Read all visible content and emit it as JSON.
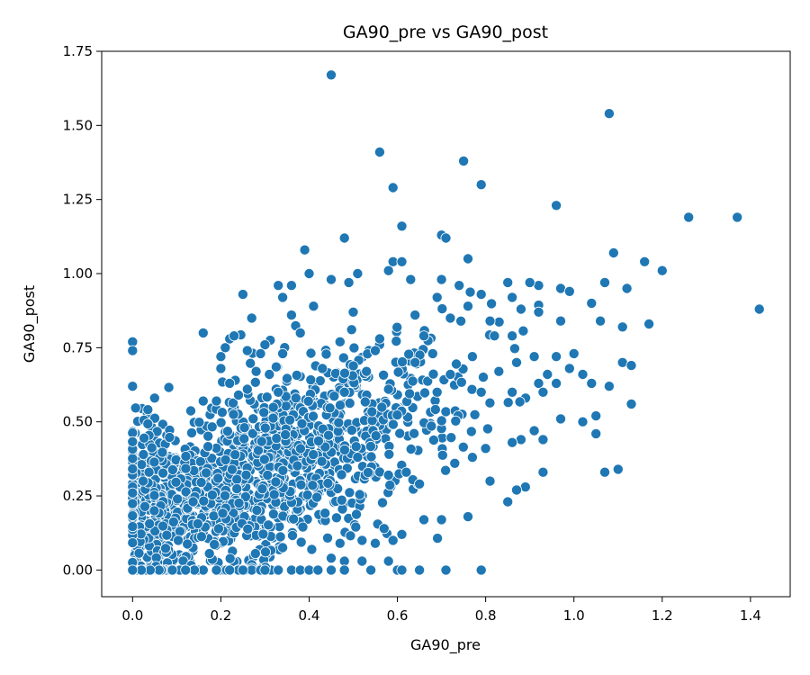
{
  "chart_data": {
    "type": "scatter",
    "title": "GA90_pre vs GA90_post",
    "xlabel": "GA90_pre",
    "ylabel": "GA90_post",
    "xlim": [
      -0.07,
      1.49
    ],
    "ylim": [
      -0.09,
      1.75
    ],
    "xticks": [
      0.0,
      0.2,
      0.4,
      0.6,
      0.8,
      1.0,
      1.2,
      1.4
    ],
    "xtick_labels": [
      "0.0",
      "0.2",
      "0.4",
      "0.6",
      "0.8",
      "1.0",
      "1.2",
      "1.4"
    ],
    "yticks": [
      0.0,
      0.25,
      0.5,
      0.75,
      1.0,
      1.25,
      1.5,
      1.75
    ],
    "ytick_labels": [
      "0.00",
      "0.25",
      "0.50",
      "0.75",
      "1.00",
      "1.25",
      "1.50",
      "1.75"
    ],
    "grid": false,
    "marker_color": "#1f77b4",
    "series": [
      {
        "points": [
          [
            0.45,
            1.67
          ],
          [
            1.08,
            1.54
          ],
          [
            0.56,
            1.41
          ],
          [
            0.75,
            1.38
          ],
          [
            0.79,
            1.3
          ],
          [
            0.59,
            1.29
          ],
          [
            0.96,
            1.23
          ],
          [
            1.26,
            1.19
          ],
          [
            1.37,
            1.19
          ],
          [
            0.61,
            1.16
          ],
          [
            0.7,
            1.13
          ],
          [
            0.71,
            1.12
          ],
          [
            0.48,
            1.12
          ],
          [
            1.09,
            1.07
          ],
          [
            0.39,
            1.08
          ],
          [
            0.76,
            1.05
          ],
          [
            1.16,
            1.04
          ],
          [
            0.59,
            1.04
          ],
          [
            0.61,
            1.04
          ],
          [
            1.2,
            1.01
          ],
          [
            0.51,
            1.0
          ],
          [
            0.4,
            1.0
          ],
          [
            0.58,
            1.01
          ],
          [
            0.63,
            0.98
          ],
          [
            0.45,
            0.98
          ],
          [
            0.49,
            0.97
          ],
          [
            0.7,
            0.98
          ],
          [
            0.85,
            0.97
          ],
          [
            0.9,
            0.97
          ],
          [
            1.07,
            0.97
          ],
          [
            0.33,
            0.96
          ],
          [
            0.36,
            0.96
          ],
          [
            0.74,
            0.96
          ],
          [
            0.97,
            0.95
          ],
          [
            0.99,
            0.94
          ],
          [
            1.12,
            0.95
          ],
          [
            0.25,
            0.93
          ],
          [
            0.79,
            0.93
          ],
          [
            0.86,
            0.92
          ],
          [
            1.04,
            0.9
          ],
          [
            0.34,
            0.92
          ],
          [
            0.69,
            0.92
          ],
          [
            0.41,
            0.89
          ],
          [
            0.76,
            0.89
          ],
          [
            0.88,
            0.88
          ],
          [
            1.42,
            0.88
          ],
          [
            0.5,
            0.87
          ],
          [
            0.92,
            0.87
          ],
          [
            0.27,
            0.85
          ],
          [
            0.36,
            0.86
          ],
          [
            0.64,
            0.86
          ],
          [
            0.72,
            0.85
          ],
          [
            0.81,
            0.84
          ],
          [
            0.97,
            0.84
          ],
          [
            1.06,
            0.84
          ],
          [
            1.17,
            0.83
          ],
          [
            0.38,
            0.8
          ],
          [
            0.16,
            0.8
          ],
          [
            0.21,
            0.75
          ],
          [
            0.22,
            0.78
          ],
          [
            0.23,
            0.79
          ],
          [
            1.11,
            0.82
          ],
          [
            0.3,
            0.76
          ],
          [
            0.47,
            0.77
          ],
          [
            0.56,
            0.78
          ],
          [
            0.66,
            0.79
          ],
          [
            0.82,
            0.79
          ],
          [
            0.86,
            0.79
          ],
          [
            0.0,
            0.77
          ],
          [
            0.0,
            0.74
          ],
          [
            0.26,
            0.74
          ],
          [
            0.29,
            0.73
          ],
          [
            0.34,
            0.73
          ],
          [
            0.55,
            0.74
          ],
          [
            0.68,
            0.73
          ],
          [
            0.77,
            0.72
          ],
          [
            0.91,
            0.72
          ],
          [
            0.96,
            0.72
          ],
          [
            1.0,
            0.73
          ],
          [
            0.2,
            0.72
          ],
          [
            1.11,
            0.7
          ],
          [
            1.13,
            0.69
          ],
          [
            0.64,
            0.7
          ],
          [
            0.87,
            0.7
          ],
          [
            0.99,
            0.68
          ],
          [
            1.02,
            0.66
          ],
          [
            0.2,
            0.68
          ],
          [
            0.28,
            0.67
          ],
          [
            0.31,
            0.66
          ],
          [
            0.43,
            0.68
          ],
          [
            0.53,
            0.67
          ],
          [
            0.72,
            0.66
          ],
          [
            0.83,
            0.67
          ],
          [
            0.94,
            0.66
          ],
          [
            1.04,
            0.63
          ],
          [
            1.08,
            0.62
          ],
          [
            0.96,
            0.63
          ],
          [
            0.22,
            0.63
          ],
          [
            0.26,
            0.61
          ],
          [
            0.33,
            0.6
          ],
          [
            0.0,
            0.62
          ],
          [
            0.05,
            0.58
          ],
          [
            0.16,
            0.57
          ],
          [
            0.19,
            0.57
          ],
          [
            0.24,
            0.59
          ],
          [
            0.37,
            0.58
          ],
          [
            0.48,
            0.6
          ],
          [
            0.58,
            0.61
          ],
          [
            0.69,
            0.6
          ],
          [
            0.79,
            0.6
          ],
          [
            0.86,
            0.6
          ],
          [
            0.93,
            0.6
          ],
          [
            1.13,
            0.56
          ],
          [
            1.05,
            0.52
          ],
          [
            0.97,
            0.51
          ],
          [
            1.02,
            0.5
          ],
          [
            1.05,
            0.46
          ],
          [
            0.91,
            0.47
          ],
          [
            0.88,
            0.44
          ],
          [
            0.93,
            0.44
          ],
          [
            0.86,
            0.43
          ],
          [
            0.8,
            0.41
          ],
          [
            0.77,
            0.38
          ],
          [
            0.73,
            0.36
          ],
          [
            0.62,
            0.33
          ],
          [
            0.58,
            0.32
          ],
          [
            0.65,
            0.29
          ],
          [
            0.81,
            0.3
          ],
          [
            0.93,
            0.33
          ],
          [
            0.89,
            0.28
          ],
          [
            0.87,
            0.27
          ],
          [
            0.85,
            0.23
          ],
          [
            1.07,
            0.33
          ],
          [
            1.1,
            0.34
          ],
          [
            0.76,
            0.18
          ],
          [
            0.66,
            0.17
          ],
          [
            0.7,
            0.17
          ],
          [
            0.57,
            0.14
          ],
          [
            0.61,
            0.12
          ],
          [
            0.59,
            0.1
          ],
          [
            0.55,
            0.09
          ],
          [
            0.52,
            0.1
          ],
          [
            0.47,
            0.09
          ],
          [
            0.45,
            0.04
          ],
          [
            0.48,
            0.03
          ],
          [
            0.52,
            0.03
          ],
          [
            0.58,
            0.03
          ],
          [
            0.36,
            0.0
          ],
          [
            0.38,
            0.0
          ],
          [
            0.4,
            0.0
          ],
          [
            0.42,
            0.0
          ],
          [
            0.45,
            0.0
          ],
          [
            0.48,
            0.0
          ],
          [
            0.54,
            0.0
          ],
          [
            0.6,
            0.0
          ],
          [
            0.61,
            0.0
          ],
          [
            0.65,
            0.0
          ],
          [
            0.71,
            0.0
          ],
          [
            0.79,
            0.0
          ],
          [
            0.27,
            0.0
          ],
          [
            0.29,
            0.0
          ],
          [
            0.3,
            0.0
          ],
          [
            0.33,
            0.0
          ],
          [
            0.24,
            0.0
          ],
          [
            0.25,
            0.0
          ],
          [
            0.22,
            0.0
          ],
          [
            0.19,
            0.0
          ],
          [
            0.16,
            0.0
          ],
          [
            0.14,
            0.0
          ],
          [
            0.12,
            0.0
          ],
          [
            0.09,
            0.0
          ],
          [
            0.06,
            0.0
          ],
          [
            0.04,
            0.0
          ],
          [
            0.02,
            0.0
          ],
          [
            0.0,
            0.0
          ]
        ]
      }
    ],
    "cloud_note_omitted": true
  }
}
